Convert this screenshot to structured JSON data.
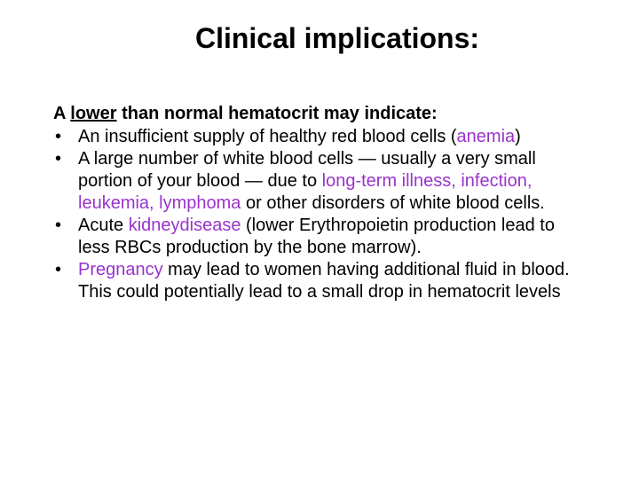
{
  "title": "Clinical implications:",
  "intro_prefix": "A ",
  "intro_lower": "lower",
  "intro_suffix": " than normal hematocrit may indicate:",
  "bullets": {
    "b1_a": "An insufficient supply of healthy red blood cells (",
    "b1_kw": "anemia",
    "b1_c": ")",
    "b2_a": "A large number of white blood cells — usually a very small portion of your blood — due to ",
    "b2_kw": "long-term illness, infection, leukemia, lymphoma",
    "b2_c": " or other disorders of white blood cells.",
    "b3_a": "Acute ",
    "b3_kw": "kidneydisease",
    "b3_c": " (lower Erythropoietin production lead to less RBCs production by the bone marrow).",
    "b4_kw": "Pregnancy",
    "b4_c": " may lead to women having additional fluid in blood. This could potentially lead to a small drop in hematocrit levels"
  },
  "colors": {
    "keyword": "#9933cc",
    "text": "#000000",
    "background": "#ffffff"
  },
  "typography": {
    "title_fontsize": 32,
    "title_weight": "bold",
    "body_fontsize": 20
  }
}
